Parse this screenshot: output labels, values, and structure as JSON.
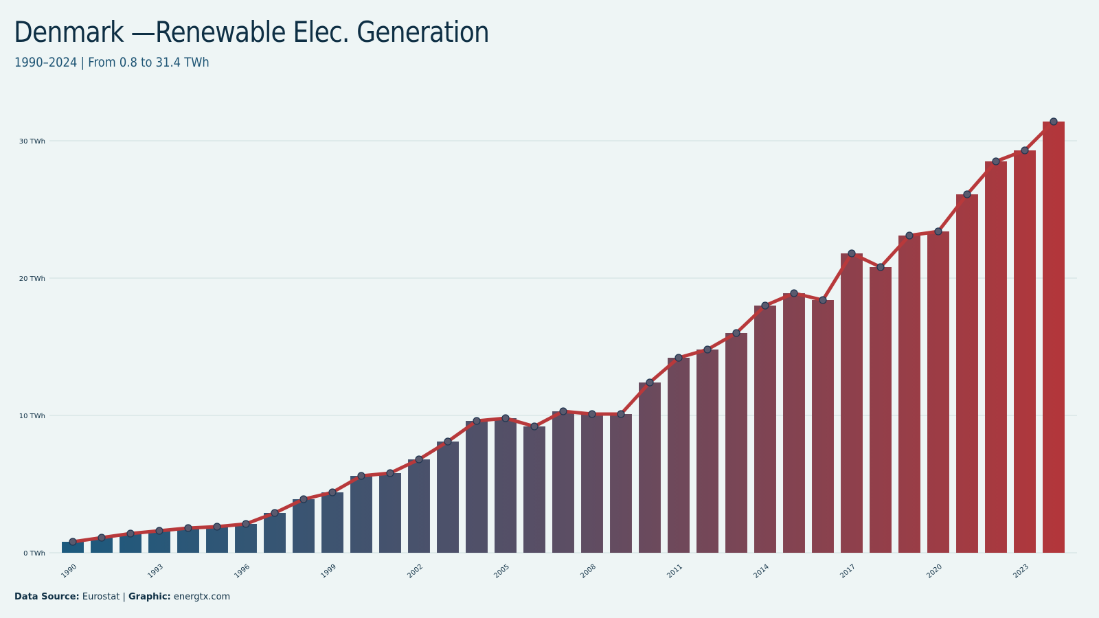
{
  "header": {
    "title": "Denmark —Renewable Elec. Generation",
    "subtitle": "1990–2024 | From 0.8 to 31.4 TWh"
  },
  "footer": {
    "source_label": "Data Source:",
    "source_value": "Eurostat",
    "separator": "|",
    "graphic_label": "Graphic:",
    "graphic_value": "energtx.com"
  },
  "colors": {
    "background": "#eef5f5",
    "gridline": "#cfdfe0",
    "bar_start": "#1b5a7e",
    "bar_end": "#b4363a",
    "line": "#b8393b",
    "marker_fill": "#5a5a6e",
    "marker_stroke": "#1f3550"
  },
  "chart_data": {
    "type": "bar",
    "overlay": "line",
    "title": "Denmark —Renewable Elec. Generation",
    "subtitle": "1990–2024 | From 0.8 to 31.4 TWh",
    "xlabel": "",
    "ylabel": "",
    "unit": "TWh",
    "grid": "horizontal",
    "legend": "none",
    "ylim": [
      0,
      32
    ],
    "y_ticks": [
      0,
      10,
      20,
      30
    ],
    "y_tick_labels": [
      "0 TWh",
      "10 TWh",
      "20 TWh",
      "30 TWh"
    ],
    "x_tick_labels": [
      "1990",
      "1993",
      "1996",
      "1999",
      "2002",
      "2005",
      "2008",
      "2011",
      "2014",
      "2017",
      "2020",
      "2023"
    ],
    "categories": [
      "1990",
      "1991",
      "1992",
      "1993",
      "1994",
      "1995",
      "1996",
      "1997",
      "1998",
      "1999",
      "2000",
      "2001",
      "2002",
      "2003",
      "2004",
      "2005",
      "2006",
      "2007",
      "2008",
      "2009",
      "2010",
      "2011",
      "2012",
      "2013",
      "2014",
      "2015",
      "2016",
      "2017",
      "2018",
      "2019",
      "2020",
      "2021",
      "2022",
      "2023",
      "2024"
    ],
    "values": [
      0.8,
      1.1,
      1.4,
      1.6,
      1.8,
      1.9,
      2.1,
      2.9,
      3.9,
      4.4,
      5.6,
      5.8,
      6.8,
      8.1,
      9.6,
      9.8,
      9.2,
      10.3,
      10.1,
      10.1,
      12.4,
      14.2,
      14.8,
      16.0,
      18.0,
      18.9,
      18.4,
      21.8,
      20.8,
      23.1,
      23.4,
      26.1,
      28.5,
      29.3,
      31.4
    ]
  }
}
